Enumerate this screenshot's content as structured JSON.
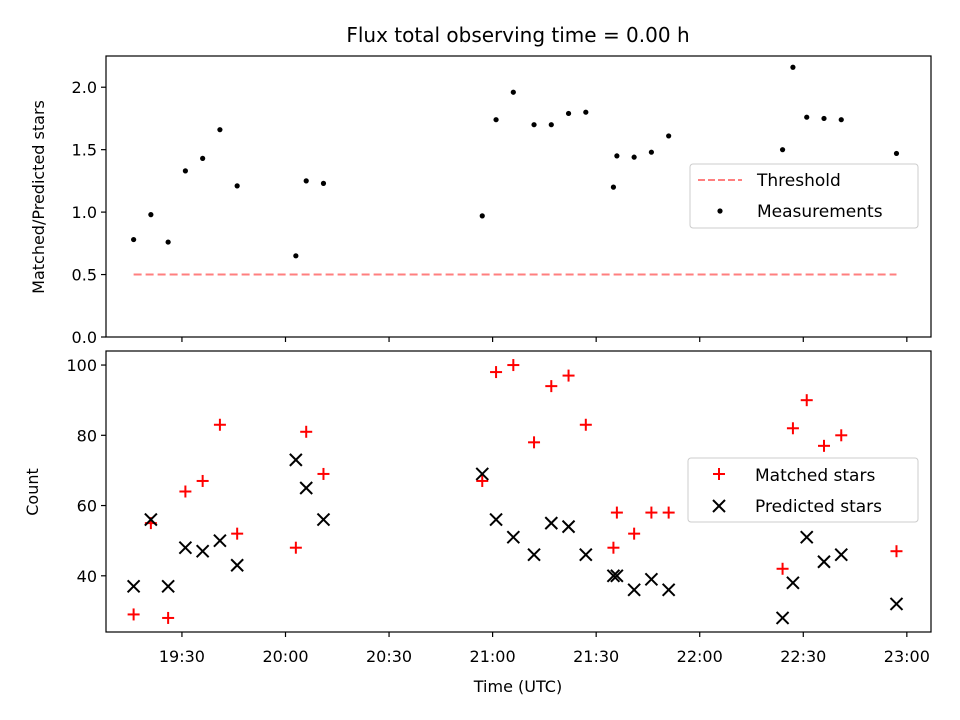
{
  "chart_data": [
    {
      "type": "scatter",
      "title": "Flux total observing time = 0.00 h",
      "xlabel": "",
      "ylabel": "Matched/Predicted stars",
      "xlim": [
        "19:08",
        "23:07"
      ],
      "ylim": [
        0,
        2.25
      ],
      "yticks": [
        {
          "v": 0.0,
          "label": "0.0"
        },
        {
          "v": 0.5,
          "label": "0.5"
        },
        {
          "v": 1.0,
          "label": "1.0"
        },
        {
          "v": 1.5,
          "label": "1.5"
        },
        {
          "v": 2.0,
          "label": "2.0"
        }
      ],
      "grid": false,
      "legend": "center-right",
      "series": [
        {
          "name": "Threshold",
          "kind": "line",
          "color": "#ff7f7f",
          "style": "dashed",
          "x": [
            "19:16",
            "22:57"
          ],
          "y": [
            0.5,
            0.5
          ]
        },
        {
          "name": "Measurements",
          "kind": "scatter",
          "color": "#000000",
          "marker": "dot",
          "x": [
            "19:16",
            "19:21",
            "19:26",
            "19:31",
            "19:36",
            "19:41",
            "19:46",
            "20:03",
            "20:06",
            "20:11",
            "20:57",
            "21:01",
            "21:06",
            "21:12",
            "21:17",
            "21:22",
            "21:27",
            "21:35",
            "21:36",
            "21:41",
            "21:46",
            "21:51",
            "22:24",
            "22:27",
            "22:31",
            "22:36",
            "22:41",
            "22:57"
          ],
          "y": [
            0.78,
            0.98,
            0.76,
            1.33,
            1.43,
            1.66,
            1.21,
            0.65,
            1.25,
            1.23,
            0.97,
            1.74,
            1.96,
            1.7,
            1.7,
            1.79,
            1.8,
            1.2,
            1.45,
            1.44,
            1.48,
            1.61,
            1.5,
            2.16,
            1.76,
            1.75,
            1.74,
            1.47
          ]
        }
      ]
    },
    {
      "type": "scatter",
      "title": "",
      "xlabel": "Time (UTC)",
      "ylabel": "Count",
      "xlim": [
        "19:08",
        "23:07"
      ],
      "ylim": [
        24,
        104
      ],
      "yticks": [
        {
          "v": 40,
          "label": "40"
        },
        {
          "v": 60,
          "label": "60"
        },
        {
          "v": 80,
          "label": "80"
        },
        {
          "v": 100,
          "label": "100"
        }
      ],
      "xticks": [
        {
          "t": "19:30",
          "label": "19:30"
        },
        {
          "t": "20:00",
          "label": "20:00"
        },
        {
          "t": "20:30",
          "label": "20:30"
        },
        {
          "t": "21:00",
          "label": "21:00"
        },
        {
          "t": "21:30",
          "label": "21:30"
        },
        {
          "t": "22:00",
          "label": "22:00"
        },
        {
          "t": "22:30",
          "label": "22:30"
        },
        {
          "t": "23:00",
          "label": "23:00"
        }
      ],
      "grid": false,
      "legend": "center-right",
      "series": [
        {
          "name": "Matched stars",
          "kind": "scatter",
          "color": "#ff0000",
          "marker": "plus",
          "x": [
            "19:16",
            "19:21",
            "19:26",
            "19:31",
            "19:36",
            "19:41",
            "19:46",
            "20:03",
            "20:06",
            "20:11",
            "20:57",
            "21:01",
            "21:06",
            "21:12",
            "21:17",
            "21:22",
            "21:27",
            "21:35",
            "21:36",
            "21:41",
            "21:46",
            "21:51",
            "22:24",
            "22:27",
            "22:31",
            "22:36",
            "22:41",
            "22:57"
          ],
          "y": [
            29,
            55,
            28,
            64,
            67,
            83,
            52,
            48,
            81,
            69,
            67,
            98,
            100,
            78,
            94,
            97,
            83,
            48,
            58,
            52,
            58,
            58,
            42,
            82,
            90,
            77,
            80,
            47
          ]
        },
        {
          "name": "Predicted stars",
          "kind": "scatter",
          "color": "#000000",
          "marker": "x",
          "x": [
            "19:16",
            "19:21",
            "19:26",
            "19:31",
            "19:36",
            "19:41",
            "19:46",
            "20:03",
            "20:06",
            "20:11",
            "20:57",
            "21:01",
            "21:06",
            "21:12",
            "21:17",
            "21:22",
            "21:27",
            "21:35",
            "21:36",
            "21:41",
            "21:46",
            "21:51",
            "22:24",
            "22:27",
            "22:31",
            "22:36",
            "22:41",
            "22:57"
          ],
          "y": [
            37,
            56,
            37,
            48,
            47,
            50,
            43,
            73,
            65,
            56,
            69,
            56,
            51,
            46,
            55,
            54,
            46,
            40,
            40,
            36,
            39,
            36,
            28,
            38,
            51,
            44,
            46,
            32
          ]
        }
      ]
    }
  ]
}
